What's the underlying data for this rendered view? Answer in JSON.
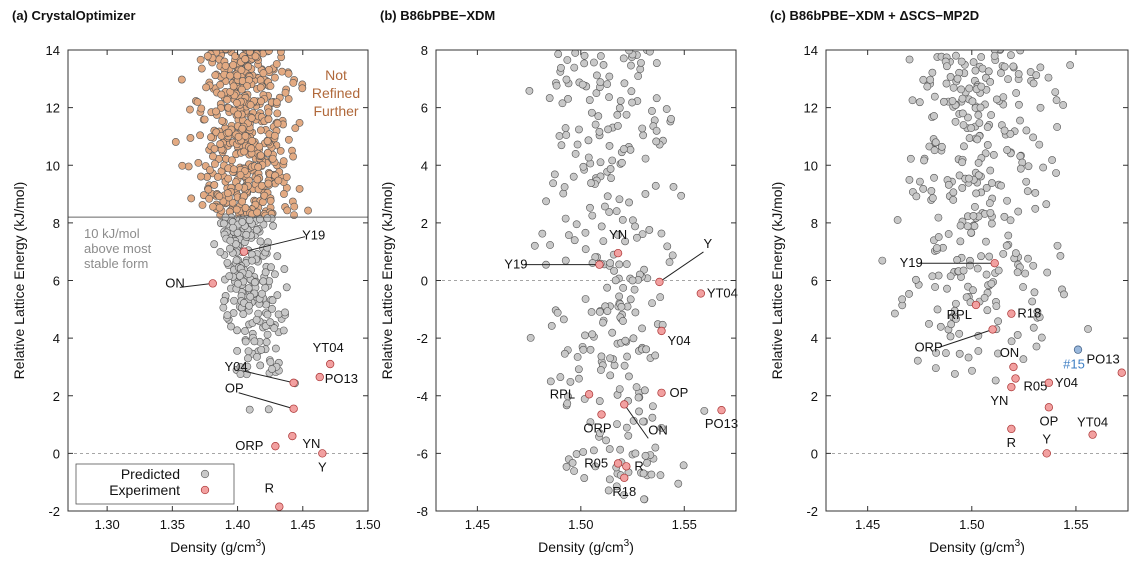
{
  "colors": {
    "predicted": "#c8c8c8",
    "experiment": "#f2a0a0",
    "refined_further": "#e3aa82",
    "highlight": "#9ab8dc",
    "not_refined_text": "#b0683a",
    "threshold_text": "#8c8c8c",
    "highlight_text": "#3f7fc4",
    "axis": "#333333"
  },
  "legend": {
    "predicted": "Predicted",
    "experiment": "Experiment"
  },
  "chart_data": [
    {
      "type": "scatter",
      "title": "(a) CrystalOptimizer",
      "xlabel": "Density (g/cm",
      "xlabel_sup": "3",
      "xlabel_end": ")",
      "ylabel": "Relative Lattice Energy (kJ/mol)",
      "xlim": [
        1.27,
        1.5
      ],
      "ylim": [
        -2,
        14
      ],
      "xticks": [
        "1.30",
        "1.35",
        "1.40",
        "1.45",
        "1.50"
      ],
      "yticks": [
        "-2",
        "0",
        "2",
        "4",
        "6",
        "8",
        "10",
        "12",
        "14"
      ],
      "threshold": {
        "y": 8.2,
        "label": [
          "10 kJ/mol",
          "above most",
          "stable form"
        ]
      },
      "region_label": [
        "Not",
        "Refined",
        "Further"
      ],
      "experiment": [
        {
          "name": "Y19",
          "x": 1.405,
          "y": 7.0
        },
        {
          "name": "ON",
          "x": 1.381,
          "y": 5.9
        },
        {
          "name": "YT04",
          "x": 1.471,
          "y": 3.1
        },
        {
          "name": "Y04",
          "x": 1.443,
          "y": 2.45
        },
        {
          "name": "PO13",
          "x": 1.463,
          "y": 2.65
        },
        {
          "name": "OP",
          "x": 1.443,
          "y": 1.55
        },
        {
          "name": "ORP",
          "x": 1.429,
          "y": 0.25
        },
        {
          "name": "YN",
          "x": 1.442,
          "y": 0.6
        },
        {
          "name": "Y",
          "x": 1.465,
          "y": 0.0
        },
        {
          "name": "R",
          "x": 1.432,
          "y": -1.85
        }
      ]
    },
    {
      "type": "scatter",
      "title": "(b) B86bPBE−XDM",
      "xlabel": "Density (g/cm",
      "xlabel_sup": "3",
      "xlabel_end": ")",
      "ylabel": "Relative Lattice Energy (kJ/mol)",
      "xlim": [
        1.43,
        1.575
      ],
      "ylim": [
        -8,
        8
      ],
      "xticks": [
        "1.45",
        "1.50",
        "1.55"
      ],
      "yticks": [
        "-8",
        "-6",
        "-4",
        "-2",
        "0",
        "2",
        "4",
        "6",
        "8"
      ],
      "experiment": [
        {
          "name": "YN",
          "x": 1.518,
          "y": 0.95
        },
        {
          "name": "Y19",
          "x": 1.509,
          "y": 0.55
        },
        {
          "name": "Y",
          "x": 1.538,
          "y": -0.05
        },
        {
          "name": "YT04",
          "x": 1.558,
          "y": -0.45
        },
        {
          "name": "Y04",
          "x": 1.539,
          "y": -1.75
        },
        {
          "name": "RPL",
          "x": 1.504,
          "y": -3.95
        },
        {
          "name": "OP",
          "x": 1.539,
          "y": -3.9
        },
        {
          "name": "ORP",
          "x": 1.51,
          "y": -4.65
        },
        {
          "name": "ON",
          "x": 1.521,
          "y": -4.3
        },
        {
          "name": "PO13",
          "x": 1.568,
          "y": -4.5
        },
        {
          "name": "R05",
          "x": 1.518,
          "y": -6.35
        },
        {
          "name": "R",
          "x": 1.522,
          "y": -6.45
        },
        {
          "name": "R18",
          "x": 1.521,
          "y": -6.85
        }
      ]
    },
    {
      "type": "scatter",
      "title": "(c) B86bPBE−XDM + ΔSCS−MP2D",
      "xlabel": "Density (g/cm",
      "xlabel_sup": "3",
      "xlabel_end": ")",
      "ylabel": "Relative Lattice Energy (kJ/mol)",
      "xlim": [
        1.43,
        1.575
      ],
      "ylim": [
        -2,
        14
      ],
      "xticks": [
        "1.45",
        "1.50",
        "1.55"
      ],
      "yticks": [
        "-2",
        "0",
        "2",
        "4",
        "6",
        "8",
        "10",
        "12",
        "14"
      ],
      "highlight": {
        "name": "#15",
        "x": 1.551,
        "y": 3.6
      },
      "experiment": [
        {
          "name": "Y19",
          "x": 1.511,
          "y": 6.6
        },
        {
          "name": "RPL",
          "x": 1.502,
          "y": 5.15
        },
        {
          "name": "R18",
          "x": 1.519,
          "y": 4.85
        },
        {
          "name": "ORP",
          "x": 1.51,
          "y": 4.3
        },
        {
          "name": "ON",
          "x": 1.52,
          "y": 3.0
        },
        {
          "name": "R05",
          "x": 1.521,
          "y": 2.6
        },
        {
          "name": "YN",
          "x": 1.519,
          "y": 2.3
        },
        {
          "name": "Y04",
          "x": 1.537,
          "y": 2.45
        },
        {
          "name": "PO13",
          "x": 1.572,
          "y": 2.8
        },
        {
          "name": "OP",
          "x": 1.537,
          "y": 1.6
        },
        {
          "name": "R",
          "x": 1.519,
          "y": 0.85
        },
        {
          "name": "YT04",
          "x": 1.558,
          "y": 0.65
        },
        {
          "name": "Y",
          "x": 1.536,
          "y": 0.0
        }
      ]
    }
  ]
}
